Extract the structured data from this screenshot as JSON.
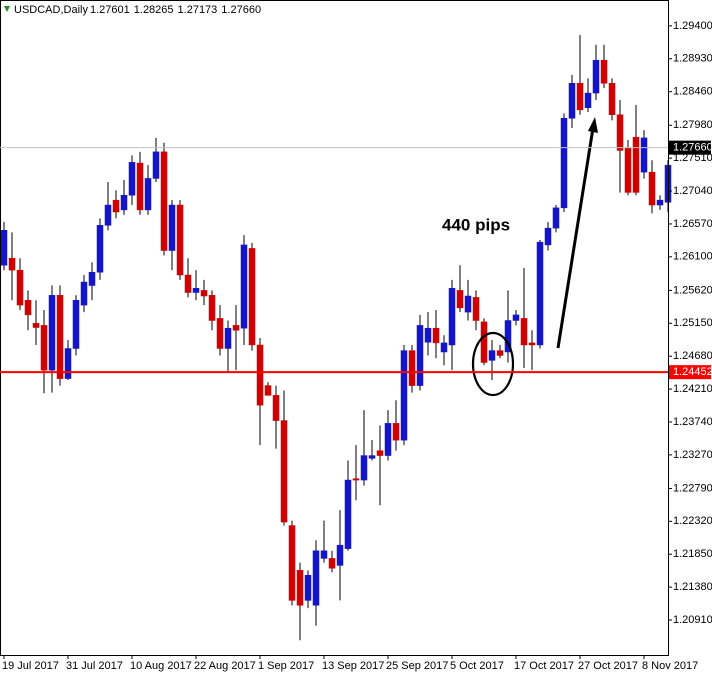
{
  "chart_data": {
    "type": "candlestick",
    "symbol": "USDCAD,Daily",
    "info": [
      1.27601,
      1.28265,
      1.27173,
      {
        "value": 1.2766,
        "label": "1.27660"
      }
    ],
    "annotation": "440 pips",
    "up_color": "#1414c8",
    "down_color": "#d00000",
    "wick_color": "#000000",
    "categories": [
      "19 Jul 2017",
      null,
      null,
      null,
      null,
      null,
      null,
      null,
      "31 Jul 2017",
      null,
      null,
      null,
      null,
      null,
      null,
      null,
      "10 Aug 2017",
      null,
      null,
      null,
      null,
      null,
      null,
      null,
      "22 Aug 2017",
      null,
      null,
      null,
      null,
      null,
      null,
      null,
      "1 Sep 2017",
      null,
      null,
      null,
      null,
      null,
      null,
      null,
      "13 Sep 2017",
      null,
      null,
      null,
      null,
      null,
      null,
      null,
      "25 Sep 2017",
      null,
      null,
      null,
      null,
      null,
      null,
      null,
      "5 Oct 2017",
      null,
      null,
      null,
      null,
      null,
      null,
      null,
      "17 Oct 2017",
      null,
      null,
      null,
      null,
      null,
      null,
      null,
      "27 Oct 2017",
      null,
      null,
      null,
      null,
      null,
      null,
      null,
      "8 Nov 2017",
      null,
      null,
      null
    ],
    "open": [
      1.2598,
      1.2608,
      1.2591,
      1.2548,
      1.2515,
      1.2512,
      1.2448,
      1.2555,
      1.2436,
      1.2479,
      1.2541,
      1.2569,
      1.2588,
      1.2655,
      1.2691,
      1.2677,
      1.2698,
      1.2744,
      1.2677,
      1.2722,
      1.276,
      1.2619,
      1.2684,
      1.2584,
      1.2559,
      1.2562,
      1.2555,
      1.2522,
      1.2479,
      1.2512,
      1.2508,
      1.2622,
      1.2484,
      1.2426,
      1.2412,
      1.2376,
      1.2226,
      1.2162,
      1.2119,
      1.2112,
      1.2179,
      1.2179,
      1.2169,
      1.2193,
      1.2293,
      1.2291,
      1.2322,
      1.2333,
      1.2326,
      1.2372,
      1.2348,
      1.2476,
      1.2426,
      1.2488,
      1.2508,
      1.2474,
      1.2484,
      1.2562,
      1.2531,
      1.2552,
      1.2517,
      1.2462,
      1.2476,
      1.2474,
      1.2519,
      1.2522,
      1.2487,
      1.2484,
      1.2627,
      1.2651,
      1.268,
      1.2808,
      1.2858,
      1.2823,
      1.2844,
      1.2891,
      1.2858,
      1.2813,
      1.2765,
      1.2781,
      1.2731,
      1.2731,
      1.2684,
      1.2688
    ],
    "high": [
      1.266,
      1.2645,
      1.2608,
      1.2562,
      1.2548,
      1.2534,
      1.2569,
      1.2569,
      1.2491,
      1.2555,
      1.2584,
      1.2602,
      1.2665,
      1.2717,
      1.2705,
      1.272,
      1.2755,
      1.276,
      1.2741,
      1.278,
      1.2773,
      1.2691,
      1.2691,
      1.2608,
      1.2591,
      1.2577,
      1.2562,
      1.2541,
      1.2519,
      1.2541,
      1.2641,
      1.263,
      1.2494,
      1.2431,
      1.2426,
      1.2419,
      1.2233,
      1.2173,
      1.2162,
      1.2205,
      1.2233,
      1.219,
      1.2248,
      1.2319,
      1.2341,
      1.2391,
      1.2348,
      1.2369,
      1.2391,
      1.2405,
      1.2484,
      1.2484,
      1.2527,
      1.2531,
      1.2534,
      1.2498,
      1.2577,
      1.2598,
      1.2577,
      1.2562,
      1.2522,
      1.2491,
      1.2484,
      1.2562,
      1.2534,
      1.2594,
      1.2505,
      1.2634,
      1.266,
      1.2684,
      1.2815,
      1.287,
      1.2927,
      1.2865,
      1.2913,
      1.2913,
      1.2865,
      1.2834,
      1.2777,
      1.2827,
      1.2791,
      1.2748,
      1.2698,
      1.2748
    ],
    "low": [
      1.2591,
      1.2548,
      1.2534,
      1.2505,
      1.2484,
      1.2415,
      1.2416,
      1.2426,
      1.2434,
      1.2469,
      1.2531,
      1.2548,
      1.2577,
      1.2648,
      1.2665,
      1.267,
      1.2684,
      1.267,
      1.267,
      1.2717,
      1.2612,
      1.2591,
      1.2577,
      1.2552,
      1.2548,
      1.2541,
      1.2505,
      1.2469,
      1.2445,
      1.2448,
      1.2484,
      1.2476,
      1.2341,
      1.2412,
      1.2336,
      1.2226,
      1.2112,
      1.2062,
      1.2108,
      1.2083,
      1.2173,
      1.2159,
      1.2119,
      1.219,
      1.2262,
      1.2283,
      1.2319,
      1.2255,
      1.2319,
      1.2333,
      1.2341,
      1.2416,
      1.2419,
      1.2469,
      1.2465,
      1.2455,
      1.2448,
      1.2531,
      1.2519,
      1.2505,
      1.2455,
      1.2434,
      1.2465,
      1.2459,
      1.2512,
      1.2451,
      1.2448,
      1.2479,
      1.2619,
      1.2645,
      1.2674,
      1.2794,
      1.2813,
      1.2817,
      1.2834,
      1.2851,
      1.2805,
      1.2702,
      1.2698,
      1.2698,
      1.2722,
      1.2672,
      1.2677,
      1.2674
    ],
    "close": [
      1.2648,
      1.2591,
      1.2541,
      1.2527,
      1.2509,
      1.2448,
      1.2555,
      1.2436,
      1.2479,
      1.2548,
      1.2574,
      1.2588,
      1.2655,
      1.2684,
      1.2674,
      1.2698,
      1.2745,
      1.2677,
      1.2722,
      1.276,
      1.2619,
      1.2684,
      1.2584,
      1.2559,
      1.2565,
      1.2554,
      1.2519,
      1.2479,
      1.2508,
      1.2505,
      1.2627,
      1.2484,
      1.2398,
      1.2412,
      1.2376,
      1.2231,
      1.2119,
      1.2112,
      1.2155,
      1.219,
      1.219,
      1.2165,
      1.2198,
      1.2291,
      1.2291,
      1.2326,
      1.2326,
      1.2326,
      1.2372,
      1.2348,
      1.2476,
      1.2426,
      1.2512,
      1.2508,
      1.2487,
      1.2487,
      1.2565,
      1.2537,
      1.2554,
      1.2519,
      1.2459,
      1.2476,
      1.2469,
      1.2519,
      1.2527,
      1.2484,
      1.2484,
      1.2631,
      1.2651,
      1.268,
      1.2808,
      1.2858,
      1.282,
      1.2844,
      1.2891,
      1.2858,
      1.2813,
      1.2762,
      1.2702,
      1.2702,
      1.278,
      1.2684,
      1.2691,
      1.2741
    ],
    "ylim": [
      1.2041,
      1.2977
    ],
    "yticks": [
      {
        "value": 1.294,
        "label": "1.29400"
      },
      {
        "value": 1.2893,
        "label": "1.28930"
      },
      {
        "value": 1.2846,
        "label": "1.28460"
      },
      {
        "value": 1.2798,
        "label": "1.27980"
      },
      {
        "value": 1.2751,
        "label": "1.27510"
      },
      {
        "value": 1.2704,
        "label": "1.27040"
      },
      {
        "value": 1.2657,
        "label": "1.26570"
      },
      {
        "value": 1.261,
        "label": "1.26100"
      },
      {
        "value": 1.2562,
        "label": "1.25620"
      },
      {
        "value": 1.2515,
        "label": "1.25150"
      },
      {
        "value": 1.2468,
        "label": "1.24680"
      },
      {
        "value": 1.2421,
        "label": "1.24210"
      },
      {
        "value": 1.2374,
        "label": "1.23740"
      },
      {
        "value": 1.2327,
        "label": "1.23270"
      },
      {
        "value": 1.2279,
        "label": "1.22790"
      },
      {
        "value": 1.2232,
        "label": "1.22320"
      },
      {
        "value": 1.2185,
        "label": "1.21850"
      },
      {
        "value": 1.2138,
        "label": "1.21380"
      },
      {
        "value": 1.2091,
        "label": "1.20910"
      }
    ],
    "hlines": [
      {
        "value": 1.2766,
        "label": "1.27660",
        "color": "#c0c0c0",
        "label_color": "#000000"
      },
      {
        "value": 1.24452,
        "label": "1.24452",
        "color": "#ff0000",
        "label_color": "#ff0000"
      }
    ]
  }
}
